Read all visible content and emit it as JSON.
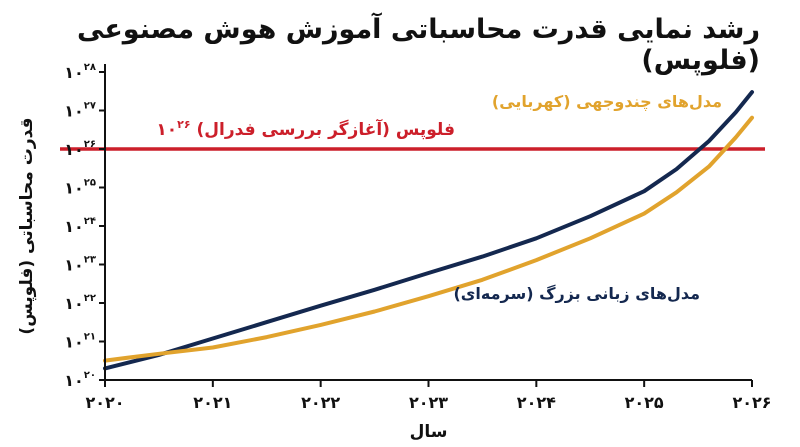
{
  "chart_data": {
    "type": "line",
    "title": "رشد نمایی قدرت محاسباتی آموزش هوش مصنوعی (فلوپس)",
    "xlabel": "سال",
    "ylabel": "قدرت محاسباتی (فلوپس)",
    "x": [
      2020,
      2021,
      2022,
      2023,
      2024,
      2025,
      2026
    ],
    "x_tick_labels": [
      "۲۰۲۰",
      "۲۰۲۱",
      "۲۰۲۲",
      "۲۰۲۳",
      "۲۰۲۴",
      "۲۰۲۵",
      "۲۰۲۶"
    ],
    "xlim": [
      2020,
      2026
    ],
    "y_scale": "log",
    "ylim": [
      1e+20,
      1e+28
    ],
    "y_ticks": [
      1e+20,
      1e+21,
      1e+22,
      1e+23,
      1e+24,
      1e+25,
      1e+26,
      1e+27,
      1e+28
    ],
    "y_tick_labels": [
      {
        "base": "۱۰",
        "exp": "۲۰"
      },
      {
        "base": "۱۰",
        "exp": "۲۱"
      },
      {
        "base": "۱۰",
        "exp": "۲۲"
      },
      {
        "base": "۱۰",
        "exp": "۲۳"
      },
      {
        "base": "۱۰",
        "exp": "۲۴"
      },
      {
        "base": "۱۰",
        "exp": "۲۵"
      },
      {
        "base": "۱۰",
        "exp": "۲۶"
      },
      {
        "base": "۱۰",
        "exp": "۲۷"
      },
      {
        "base": "۱۰",
        "exp": "۲۸"
      }
    ],
    "grid": false,
    "series": [
      {
        "name": "مدل‌های زبانی بزرگ (سرمه‌ای)",
        "color": "#14284f",
        "points": [
          [
            2020.0,
            2e+20
          ],
          [
            2020.5,
            4.5e+20
          ],
          [
            2021.0,
            1.2e+21
          ],
          [
            2021.5,
            3.2e+21
          ],
          [
            2022.0,
            8.5e+21
          ],
          [
            2022.5,
            2.2e+22
          ],
          [
            2023.0,
            6e+22
          ],
          [
            2023.5,
            1.6e+23
          ],
          [
            2024.0,
            4.8e+23
          ],
          [
            2024.5,
            1.8e+24
          ],
          [
            2025.0,
            8e+24
          ],
          [
            2025.3,
            3e+25
          ],
          [
            2025.6,
            1.6e+26
          ],
          [
            2025.85,
            9e+26
          ],
          [
            2026.0,
            3e+27
          ]
        ]
      },
      {
        "name": "مدل‌های چندوجهی (کهربایی)",
        "color": "#e1a32d",
        "points": [
          [
            2020.0,
            3.2e+20
          ],
          [
            2020.5,
            4.8e+20
          ],
          [
            2021.0,
            7e+20
          ],
          [
            2021.5,
            1.3e+21
          ],
          [
            2022.0,
            2.7e+21
          ],
          [
            2022.5,
            6e+21
          ],
          [
            2023.0,
            1.5e+22
          ],
          [
            2023.5,
            4e+22
          ],
          [
            2024.0,
            1.3e+23
          ],
          [
            2024.5,
            4.8e+23
          ],
          [
            2025.0,
            2.1e+24
          ],
          [
            2025.3,
            7.5e+24
          ],
          [
            2025.6,
            3.5e+25
          ],
          [
            2025.85,
            2e+26
          ],
          [
            2026.0,
            6.5e+26
          ]
        ]
      }
    ],
    "reference_line": {
      "value": 1e+26,
      "color": "#cc1f2a",
      "label_base": "۱۰",
      "label_exp": "۲۶",
      "label_text": " فلوپس (آغازگر بررسی فدرال)"
    },
    "axis_color": "#111111"
  }
}
